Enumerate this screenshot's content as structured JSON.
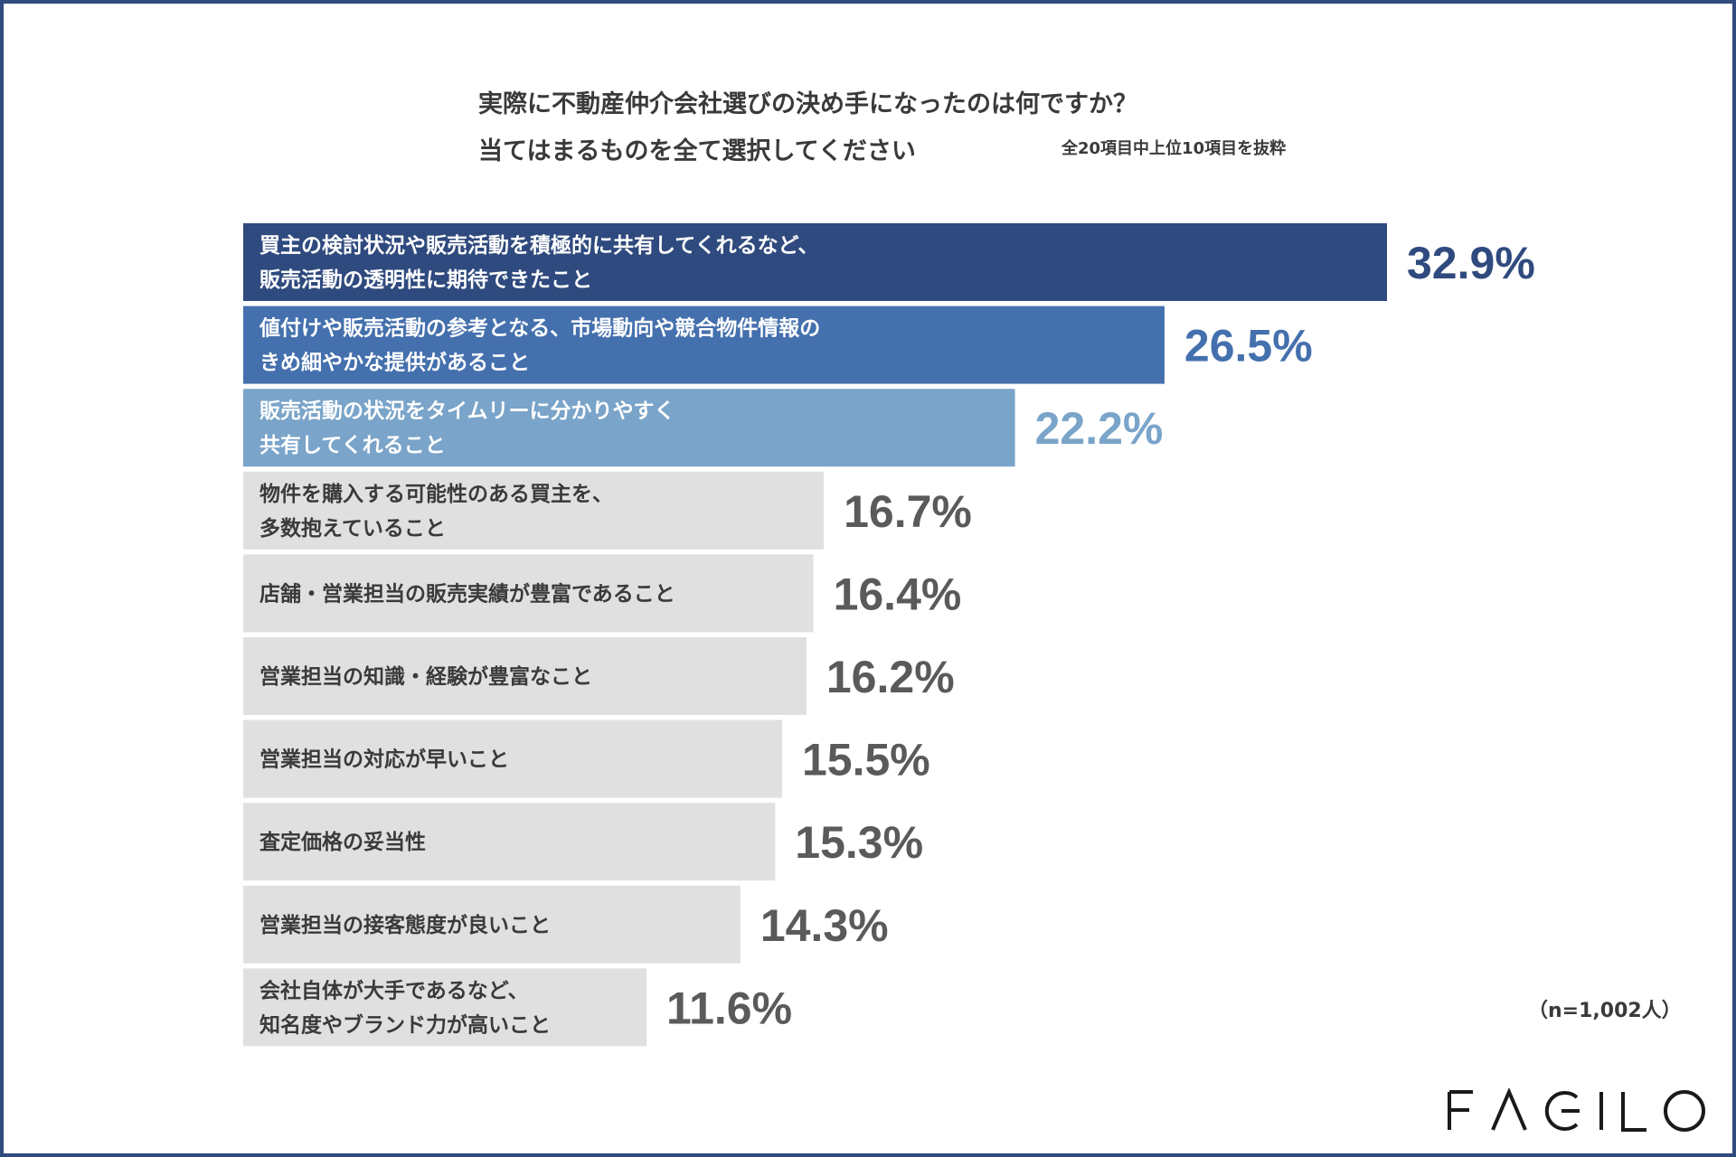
{
  "title": {
    "line1": "実際に不動産仲介会社選びの決め手になったのは何ですか？",
    "line2": "当てはまるものを全て選択してください"
  },
  "subnote": "全20項目中上位10項目を抜粋",
  "note": "（n=1,002人）",
  "logo": "FAGILO",
  "colors": {
    "bar1": "#2f4a7e",
    "bar2": "#4470ad",
    "bar3": "#7aa4c9",
    "bar_other": "#e0e0e0",
    "text_dark": "#3a3a3a",
    "value_gray": "#5a5a5a"
  },
  "chart_data": {
    "type": "bar",
    "orientation": "horizontal",
    "categories": [
      [
        "買主の検討状況や販売活動を積極的に共有してくれるなど、",
        "販売活動の透明性に期待できたこと"
      ],
      [
        "値付けや販売活動の参考となる、市場動向や競合物件情報の",
        "きめ細やかな提供があること"
      ],
      [
        "販売活動の状況をタイムリーに分かりやすく",
        "共有してくれること"
      ],
      [
        "物件を購入する可能性のある買主を、",
        "多数抱えていること"
      ],
      [
        "店舗・営業担当の販売実績が豊富であること"
      ],
      [
        "営業担当の知識・経験が豊富なこと"
      ],
      [
        "営業担当の対応が早いこと"
      ],
      [
        "査定価格の妥当性"
      ],
      [
        "営業担当の接客態度が良いこと"
      ],
      [
        "会社自体が大手であるなど、",
        "知名度やブランド力が高いこと"
      ]
    ],
    "values": [
      32.9,
      26.5,
      22.2,
      16.7,
      16.4,
      16.2,
      15.5,
      15.3,
      14.3,
      11.6
    ],
    "value_labels": [
      "32.9%",
      "26.5%",
      "22.2%",
      "16.7%",
      "16.4%",
      "16.2%",
      "15.5%",
      "15.3%",
      "14.3%",
      "11.6%"
    ],
    "unit": "%"
  }
}
